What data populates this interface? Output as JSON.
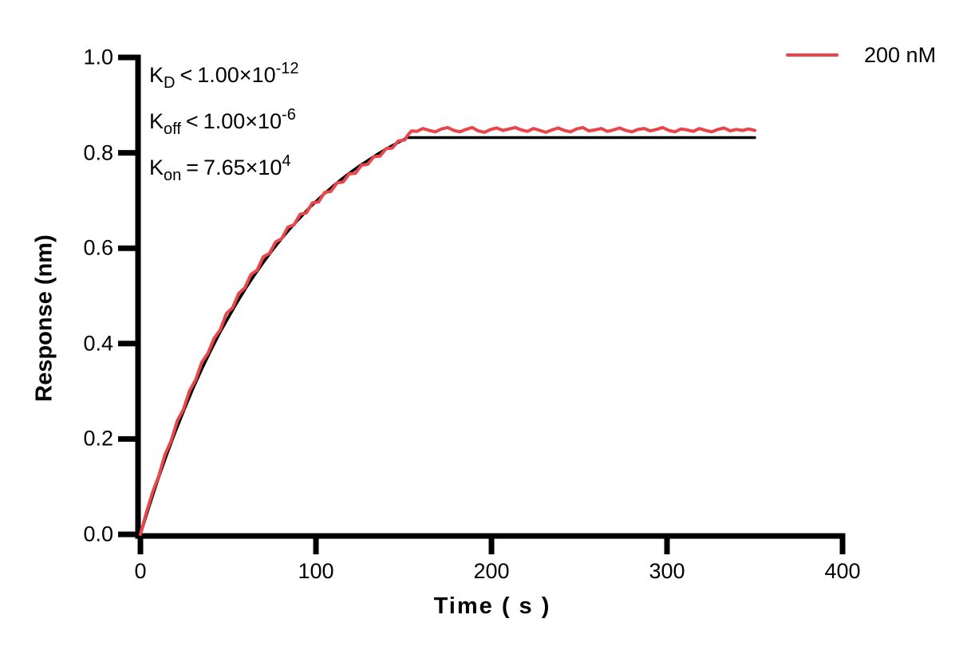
{
  "chart_data": {
    "type": "line",
    "title": "",
    "xlabel": "Time ( s )",
    "ylabel": "Response (nm)",
    "xlim": [
      0,
      400
    ],
    "ylim": [
      0.0,
      1.0
    ],
    "xticks": [
      0,
      100,
      200,
      300,
      400
    ],
    "yticks": [
      0.0,
      0.2,
      0.4,
      0.6,
      0.8,
      1.0
    ],
    "xtick_labels": [
      "0",
      "100",
      "200",
      "300",
      "400"
    ],
    "ytick_labels": [
      "0.0",
      "0.2",
      "0.4",
      "0.6",
      "0.8",
      "1.0"
    ],
    "grid": false,
    "axis_color": "#000000",
    "legend": {
      "position": "top-right",
      "entries": [
        {
          "label": "200 nM",
          "color": "#e8464a"
        }
      ]
    },
    "annotations": [
      {
        "name": "KD",
        "segments": [
          {
            "t": "K",
            "s": "base"
          },
          {
            "t": "D",
            "s": "sub"
          },
          {
            "t": "<",
            "s": "rel"
          },
          {
            "t": "1.00×10",
            "s": "base"
          },
          {
            "t": "-12",
            "s": "sup"
          }
        ]
      },
      {
        "name": "Koff",
        "segments": [
          {
            "t": "K",
            "s": "base"
          },
          {
            "t": "off",
            "s": "sub"
          },
          {
            "t": "<",
            "s": "rel"
          },
          {
            "t": "1.00×10",
            "s": "base"
          },
          {
            "t": "-6",
            "s": "sup"
          }
        ]
      },
      {
        "name": "Kon",
        "segments": [
          {
            "t": "K",
            "s": "base"
          },
          {
            "t": "on",
            "s": "sub"
          },
          {
            "t": "=",
            "s": "rel"
          },
          {
            "t": "7.65×10",
            "s": "base"
          },
          {
            "t": "4",
            "s": "sup"
          }
        ]
      }
    ],
    "series": [
      {
        "name": "fit",
        "color": "#000000",
        "width": 3.5,
        "points": [
          [
            0,
            0
          ],
          [
            5,
            0.059
          ],
          [
            10,
            0.115
          ],
          [
            15,
            0.167
          ],
          [
            20,
            0.216
          ],
          [
            25,
            0.262
          ],
          [
            30,
            0.306
          ],
          [
            35,
            0.347
          ],
          [
            40,
            0.385
          ],
          [
            45,
            0.421
          ],
          [
            50,
            0.454
          ],
          [
            55,
            0.486
          ],
          [
            60,
            0.516
          ],
          [
            65,
            0.544
          ],
          [
            70,
            0.57
          ],
          [
            75,
            0.595
          ],
          [
            80,
            0.618
          ],
          [
            85,
            0.64
          ],
          [
            90,
            0.66
          ],
          [
            95,
            0.68
          ],
          [
            100,
            0.698
          ],
          [
            105,
            0.715
          ],
          [
            110,
            0.731
          ],
          [
            115,
            0.746
          ],
          [
            120,
            0.76
          ],
          [
            125,
            0.773
          ],
          [
            130,
            0.785
          ],
          [
            135,
            0.797
          ],
          [
            140,
            0.808
          ],
          [
            145,
            0.818
          ],
          [
            150,
            0.828
          ],
          [
            152,
            0.832
          ],
          [
            350,
            0.832
          ]
        ]
      },
      {
        "name": "200 nM",
        "color": "#e8464a",
        "width": 4,
        "points": [
          [
            0,
            0
          ],
          [
            3.5,
            0.047
          ],
          [
            7,
            0.089
          ],
          [
            10.5,
            0.123
          ],
          [
            14,
            0.167
          ],
          [
            17.5,
            0.196
          ],
          [
            21,
            0.238
          ],
          [
            24.5,
            0.262
          ],
          [
            28,
            0.301
          ],
          [
            31.5,
            0.324
          ],
          [
            35,
            0.361
          ],
          [
            38.5,
            0.38
          ],
          [
            42,
            0.411
          ],
          [
            45.5,
            0.429
          ],
          [
            49,
            0.463
          ],
          [
            52.5,
            0.475
          ],
          [
            56,
            0.505
          ],
          [
            59.5,
            0.517
          ],
          [
            63,
            0.545
          ],
          [
            66.5,
            0.554
          ],
          [
            70,
            0.582
          ],
          [
            73.5,
            0.589
          ],
          [
            77,
            0.613
          ],
          [
            80.5,
            0.62
          ],
          [
            84,
            0.644
          ],
          [
            87.5,
            0.649
          ],
          [
            91,
            0.671
          ],
          [
            94.5,
            0.674
          ],
          [
            98,
            0.695
          ],
          [
            101.5,
            0.697
          ],
          [
            105,
            0.717
          ],
          [
            108.5,
            0.719
          ],
          [
            112,
            0.737
          ],
          [
            115.5,
            0.739
          ],
          [
            119,
            0.756
          ],
          [
            122.5,
            0.757
          ],
          [
            126,
            0.774
          ],
          [
            129.5,
            0.776
          ],
          [
            133,
            0.792
          ],
          [
            136.5,
            0.793
          ],
          [
            140,
            0.809
          ],
          [
            143.5,
            0.81
          ],
          [
            147,
            0.825
          ],
          [
            150.5,
            0.827
          ],
          [
            152.5,
            0.838
          ],
          [
            154.5,
            0.846
          ],
          [
            157.5,
            0.845
          ],
          [
            161,
            0.851
          ],
          [
            164.5,
            0.847
          ],
          [
            168,
            0.844
          ],
          [
            171.5,
            0.85
          ],
          [
            175,
            0.853
          ],
          [
            178.5,
            0.847
          ],
          [
            182,
            0.844
          ],
          [
            185.5,
            0.849
          ],
          [
            189,
            0.853
          ],
          [
            192.5,
            0.846
          ],
          [
            196,
            0.843
          ],
          [
            199.5,
            0.849
          ],
          [
            203,
            0.852
          ],
          [
            206.5,
            0.847
          ],
          [
            210,
            0.85
          ],
          [
            213.5,
            0.853
          ],
          [
            217,
            0.848
          ],
          [
            220.5,
            0.845
          ],
          [
            224,
            0.851
          ],
          [
            227.5,
            0.847
          ],
          [
            231,
            0.843
          ],
          [
            234.5,
            0.848
          ],
          [
            238,
            0.852
          ],
          [
            241.5,
            0.847
          ],
          [
            245,
            0.844
          ],
          [
            248.5,
            0.85
          ],
          [
            252,
            0.853
          ],
          [
            255.5,
            0.846
          ],
          [
            259,
            0.848
          ],
          [
            262.5,
            0.851
          ],
          [
            266,
            0.845
          ],
          [
            269.5,
            0.848
          ],
          [
            273,
            0.852
          ],
          [
            276.5,
            0.847
          ],
          [
            280,
            0.844
          ],
          [
            283.5,
            0.849
          ],
          [
            287,
            0.851
          ],
          [
            290.5,
            0.846
          ],
          [
            294,
            0.849
          ],
          [
            297.5,
            0.853
          ],
          [
            301,
            0.847
          ],
          [
            304.5,
            0.844
          ],
          [
            308,
            0.85
          ],
          [
            311.5,
            0.848
          ],
          [
            315,
            0.845
          ],
          [
            318.5,
            0.851
          ],
          [
            322,
            0.847
          ],
          [
            325.5,
            0.844
          ],
          [
            329,
            0.849
          ],
          [
            332.5,
            0.852
          ],
          [
            336,
            0.846
          ],
          [
            339.5,
            0.849
          ],
          [
            343,
            0.847
          ],
          [
            346.5,
            0.85
          ],
          [
            350,
            0.847
          ]
        ]
      }
    ]
  }
}
